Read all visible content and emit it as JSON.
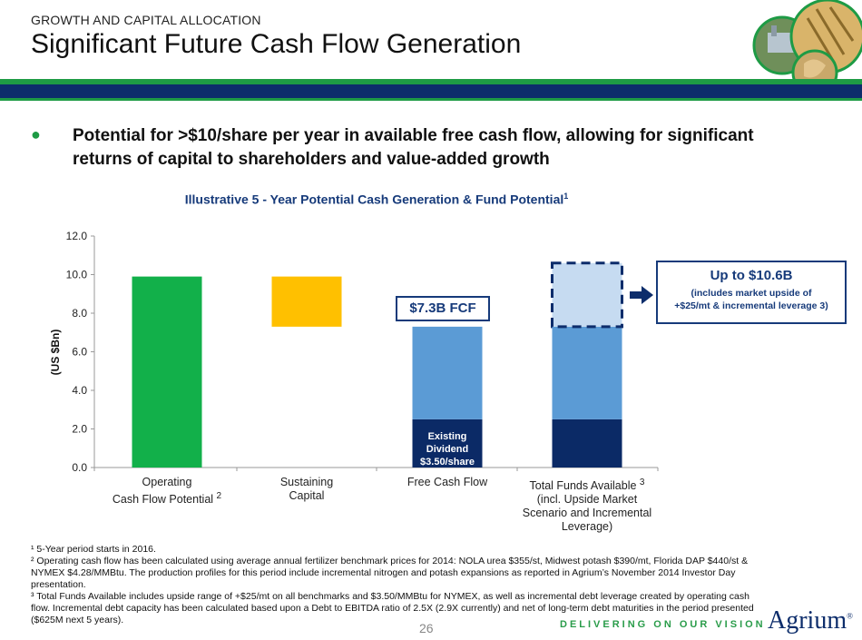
{
  "header": {
    "section_label": "GROWTH AND CAPITAL ALLOCATION",
    "title": "Significant Future Cash Flow Generation"
  },
  "bullet": {
    "symbol": "●",
    "text": "Potential for >$10/share per year in available free cash flow, allowing for significant returns of capital to shareholders and  value-added growth"
  },
  "chart_title": "Illustrative 5 - Year Potential Cash Generation & Fund Potential",
  "chart_title_footnote": "1",
  "chart_data": {
    "type": "bar",
    "title": "Illustrative 5 - Year Potential Cash Generation & Fund Potential",
    "ylabel": "(US $Bn)",
    "ylim": [
      0,
      12
    ],
    "yticks": [
      "0.0",
      "2.0",
      "4.0",
      "6.0",
      "8.0",
      "10.0",
      "12.0"
    ],
    "grid": false,
    "legend": "none",
    "categories": [
      {
        "label": "Operating Cash Flow Potential",
        "footnote": "2"
      },
      {
        "label": "Sustaining Capital",
        "footnote": ""
      },
      {
        "label": "Free Cash Flow",
        "footnote": ""
      },
      {
        "label": "Total Funds Available (incl. Upside Market Scenario and Incremental Leverage)",
        "footnote": "3"
      }
    ],
    "segments": [
      {
        "category": 0,
        "bottom": 0,
        "top": 9.9,
        "color": "#12b04a",
        "role": "operating-cash-flow"
      },
      {
        "category": 1,
        "bottom": 7.3,
        "top": 9.9,
        "color": "#ffc000",
        "role": "sustaining-capital"
      },
      {
        "category": 2,
        "bottom": 0,
        "top": 2.5,
        "color": "#0b2a66",
        "role": "existing-dividend"
      },
      {
        "category": 2,
        "bottom": 2.5,
        "top": 7.3,
        "color": "#5b9bd5",
        "role": "free-cash-flow"
      },
      {
        "category": 3,
        "bottom": 0,
        "top": 2.5,
        "color": "#0b2a66",
        "role": "existing-dividend"
      },
      {
        "category": 3,
        "bottom": 2.5,
        "top": 7.3,
        "color": "#5b9bd5",
        "role": "free-cash-flow"
      },
      {
        "category": 3,
        "bottom": 7.3,
        "top": 10.6,
        "color": "#c6dbf1",
        "role": "upside",
        "dashed": true
      }
    ],
    "annotations": {
      "fcf": "$7.3B FCF",
      "dividend": [
        "Existing",
        "Dividend",
        "$3.50/share"
      ],
      "upto_title": "Up to $10.6B",
      "upto_line1": "(includes market upside of",
      "upto_line2": "+$25/mt & incremental leverage 3)"
    }
  },
  "category_labels": {
    "c0_line1": "Operating",
    "c0_line2": "Cash Flow Potential",
    "c0_sup": "2",
    "c1_line1": "Sustaining",
    "c1_line2": "Capital",
    "c2_line1": "Free Cash Flow",
    "c3_line1": "Total Funds Available",
    "c3_sup": "3",
    "c3_line2": "(incl. Upside Market",
    "c3_line3": "Scenario and Incremental",
    "c3_line4": "Leverage)"
  },
  "footnotes": [
    "¹ 5-Year period starts in 2016.",
    "² Operating cash flow has been calculated using average annual fertilizer benchmark prices for 2014: NOLA urea $355/st, Midwest potash $390/mt, Florida DAP $440/st & NYMEX $4.28/MMBtu. The production profiles for this period include incremental nitrogen and potash expansions as reported in Agrium’s November 2014 Investor Day presentation.",
    "³ Total Funds Available includes upside range of +$25/mt on all benchmarks and  $3.50/MMBtu for NYMEX, as well as incremental debt  leverage created by operating cash flow.  Incremental debt capacity has been calculated based upon a Debt to EBITDA ratio of 2.5X (2.9X currently) and net of long-term debt maturities in  the period presented ($625M next 5 years)."
  ],
  "footer": {
    "page_number": "26",
    "tagline": "DELIVERING ON OUR VISION",
    "logo": "Agrium",
    "logo_mark": "®"
  },
  "colors": {
    "green": "#1e9b45",
    "navy": "#0d2d6b",
    "blue": "#5b9bd5",
    "light_blue": "#c6dbf1",
    "gold": "#ffc000"
  }
}
